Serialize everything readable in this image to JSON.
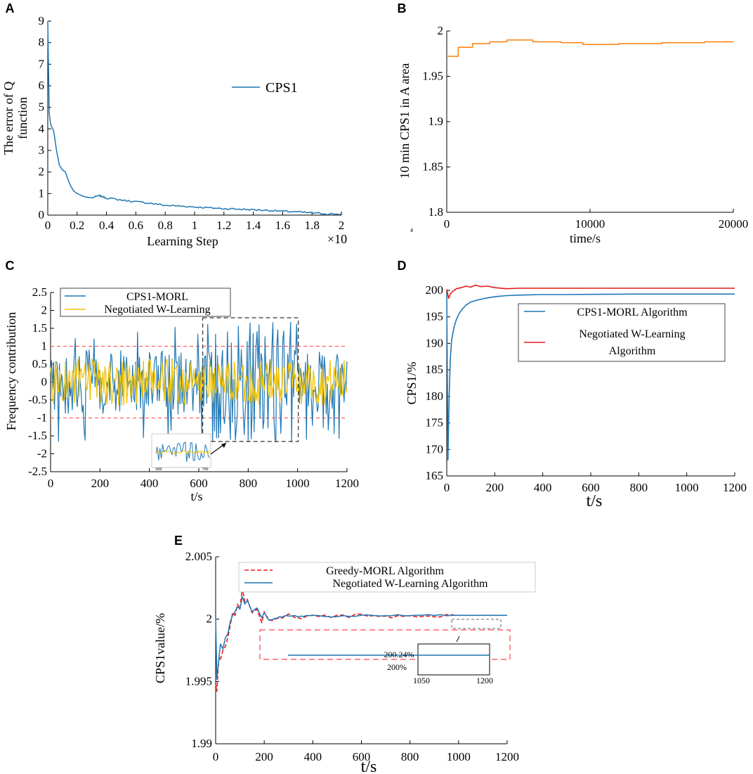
{
  "colors": {
    "blue": "#1f77b4",
    "orange": "#ff7f0e",
    "yellow": "#f2c200",
    "red": "#e31a1c",
    "dashed_red": "#ff4444"
  },
  "chart_data": [
    {
      "id": "A",
      "type": "line",
      "panel_letter": "A",
      "ylabel_line1": "The error of Q",
      "ylabel_line2": "function",
      "xlabel": "Learning Step",
      "x_multiplier": "×10",
      "xlim": [
        0,
        2
      ],
      "ylim": [
        0,
        9
      ],
      "xticks": [
        0,
        0.2,
        0.4,
        0.6,
        0.8,
        1,
        1.2,
        1.4,
        1.6,
        1.8,
        2
      ],
      "xtick_labels": [
        "0",
        "0.2",
        "0.4",
        "0.6",
        "0.8",
        "1",
        "1.2",
        "1.4",
        "1.6",
        "1.8",
        "2"
      ],
      "yticks": [
        0,
        1,
        2,
        3,
        4,
        5,
        6,
        7,
        8,
        9
      ],
      "ytick_labels": [
        "0",
        "1",
        "2",
        "3",
        "4",
        "5",
        "6",
        "7",
        "8",
        "9"
      ],
      "legend": [
        "CPS1"
      ],
      "series": [
        {
          "name": "CPS1",
          "x": [
            0,
            0.01,
            0.02,
            0.04,
            0.06,
            0.08,
            0.1,
            0.12,
            0.14,
            0.16,
            0.18,
            0.2,
            0.25,
            0.3,
            0.35,
            0.4,
            0.5,
            0.6,
            0.7,
            0.8,
            0.9,
            1.0,
            1.1,
            1.2,
            1.3,
            1.4,
            1.5,
            1.6,
            1.7,
            1.8,
            1.9,
            2.0
          ],
          "y": [
            9,
            4.7,
            4.2,
            3.9,
            3.0,
            2.3,
            2.1,
            2.0,
            1.6,
            1.3,
            1.1,
            1.0,
            0.85,
            0.8,
            0.9,
            0.8,
            0.7,
            0.62,
            0.55,
            0.45,
            0.42,
            0.38,
            0.34,
            0.3,
            0.28,
            0.25,
            0.22,
            0.18,
            0.15,
            0.1,
            0.06,
            0.05
          ]
        }
      ]
    },
    {
      "id": "B",
      "type": "line",
      "panel_letter": "B",
      "ylabel": "10 min CPS1 in A area",
      "xlabel": "time/s",
      "xlim": [
        0,
        20000
      ],
      "ylim": [
        1.8,
        2.0
      ],
      "xticks": [
        0,
        10000,
        20000
      ],
      "xtick_labels": [
        "0",
        "10000",
        "20000"
      ],
      "yticks": [
        1.8,
        1.85,
        1.9,
        1.95,
        2.0
      ],
      "ytick_labels": [
        "1.8",
        "1.85",
        "1.9",
        "1.95",
        "2"
      ],
      "stray_mark": "4",
      "series": [
        {
          "name": "CPS1",
          "x": [
            0,
            800,
            800,
            1800,
            1800,
            3000,
            3000,
            4200,
            4200,
            6000,
            6000,
            8000,
            8000,
            9500,
            9500,
            12000,
            12000,
            15000,
            15000,
            18000,
            18000,
            20000
          ],
          "y": [
            1.972,
            1.972,
            1.982,
            1.982,
            1.986,
            1.986,
            1.988,
            1.988,
            1.99,
            1.99,
            1.988,
            1.988,
            1.987,
            1.987,
            1.985,
            1.985,
            1.986,
            1.986,
            1.987,
            1.987,
            1.988,
            1.988
          ]
        }
      ]
    },
    {
      "id": "C",
      "type": "line",
      "panel_letter": "C",
      "ylabel": "Frequency contribution",
      "xlabel": "t/s",
      "xlim": [
        0,
        1200
      ],
      "ylim": [
        -2.5,
        2.5
      ],
      "xticks": [
        0,
        200,
        400,
        600,
        800,
        1000,
        1200
      ],
      "xtick_labels": [
        "0",
        "200",
        "400",
        "600",
        "800",
        "1000",
        "1200"
      ],
      "yticks": [
        -2.5,
        -2,
        -1.5,
        -1,
        -0.5,
        0,
        0.5,
        1,
        1.5,
        2,
        2.5
      ],
      "ytick_labels": [
        "-2.5",
        "-2",
        "-1.5",
        "-1",
        "-0.5",
        "0",
        "0.5",
        "1",
        "1.5",
        "2",
        "2.5"
      ],
      "thresholds": [
        1,
        -1
      ],
      "legend": [
        "CPS1-MORL",
        "Negotiated W-Learning"
      ],
      "zoom_window_x": [
        650,
        980
      ],
      "inset_tick_labels": [
        "600",
        "700"
      ],
      "series": [
        {
          "name": "CPS1-MORL"
        },
        {
          "name": "Negotiated W-Learning"
        }
      ]
    },
    {
      "id": "D",
      "type": "line",
      "panel_letter": "D",
      "ylabel": "CPS1/%",
      "xlabel": "t/s",
      "xlim": [
        0,
        1200
      ],
      "ylim": [
        165,
        200
      ],
      "xticks": [
        0,
        200,
        400,
        600,
        800,
        1000,
        1200
      ],
      "xtick_labels": [
        "0",
        "200",
        "400",
        "600",
        "800",
        "1000",
        "1200"
      ],
      "yticks": [
        165,
        170,
        175,
        180,
        185,
        190,
        195,
        200
      ],
      "ytick_labels": [
        "165",
        "170",
        "175",
        "180",
        "185",
        "190",
        "195",
        "200"
      ],
      "legend": [
        "CPS1-MORL Algorithm",
        "Negotiated W-Learning",
        "Algorithm"
      ],
      "series": [
        {
          "name": "CPS1-MORL Algorithm",
          "x": [
            0,
            5,
            10,
            15,
            20,
            30,
            40,
            50,
            60,
            80,
            100,
            130,
            160,
            200,
            250,
            300,
            400,
            500,
            600,
            800,
            1000,
            1200
          ],
          "y": [
            199.5,
            168,
            180,
            187,
            190.5,
            193,
            194.5,
            195.5,
            196.2,
            197.2,
            197.8,
            198.2,
            198.5,
            198.8,
            199.0,
            199.1,
            199.2,
            199.2,
            199.25,
            199.3,
            199.3,
            199.3
          ]
        },
        {
          "name": "Negotiated W-Learning Algorithm",
          "x": [
            0,
            8,
            15,
            25,
            40,
            60,
            80,
            100,
            120,
            140,
            170,
            200,
            250,
            300,
            400,
            500,
            600,
            800,
            1000,
            1200
          ],
          "y": [
            200.2,
            198.5,
            199.3,
            199.8,
            200.3,
            200.5,
            200.8,
            200.6,
            201.0,
            200.7,
            200.8,
            200.5,
            200.3,
            200.4,
            200.4,
            200.4,
            200.4,
            200.4,
            200.4,
            200.4
          ]
        }
      ]
    },
    {
      "id": "E",
      "type": "line",
      "panel_letter": "E",
      "ylabel": "CPS1value/%",
      "xlabel": "t/s",
      "xlim": [
        0,
        1200
      ],
      "ylim": [
        1.99,
        2.005
      ],
      "xticks": [
        0,
        200,
        400,
        600,
        800,
        1000,
        1200
      ],
      "xtick_labels": [
        "0",
        "200",
        "400",
        "600",
        "800",
        "1000",
        "1200"
      ],
      "yticks": [
        1.99,
        1.995,
        2.0,
        2.005
      ],
      "ytick_labels": [
        "1.99",
        "1.995",
        "2",
        "2.005"
      ],
      "legend": [
        "Greedy-MORL Algorithm",
        "Negotiated W-Learning Algorithm"
      ],
      "inset_labels": [
        "200.24%",
        "200%"
      ],
      "inset_xtick_labels": [
        "1050",
        "1200"
      ],
      "series": [
        {
          "name": "Greedy-MORL Algorithm",
          "x": [
            0,
            5,
            10,
            15,
            20,
            30,
            40,
            50,
            60,
            70,
            80,
            90,
            100,
            110,
            120,
            130,
            150,
            170,
            190,
            200,
            220,
            250,
            300,
            350,
            400,
            500,
            600,
            700,
            800,
            900,
            1000,
            1200
          ],
          "y": [
            1.9948,
            1.9942,
            1.996,
            1.997,
            1.9968,
            1.9975,
            1.9978,
            1.9985,
            1.9995,
            2.0005,
            2.0003,
            2.0012,
            2.0008,
            2.0025,
            2.0014,
            2.0016,
            2.0005,
            2.0008,
            1.9997,
            2.0006,
            1.9999,
            2.0,
            2.0003,
            2.0001,
            2.0003,
            2.0002,
            2.0003,
            2.0002,
            2.0003,
            2.0002,
            2.0003,
            2.0003
          ]
        },
        {
          "name": "Negotiated W-Learning Algorithm",
          "x": [
            0,
            5,
            10,
            15,
            20,
            30,
            40,
            50,
            60,
            70,
            80,
            90,
            100,
            110,
            120,
            130,
            150,
            170,
            190,
            200,
            220,
            250,
            300,
            350,
            400,
            500,
            600,
            700,
            800,
            900,
            1000,
            1200
          ],
          "y": [
            2.0002,
            1.9952,
            1.9962,
            1.9972,
            1.998,
            1.9976,
            1.9985,
            1.9988,
            1.9998,
            2.0003,
            2.0006,
            2.001,
            2.0008,
            2.0018,
            2.0012,
            2.0015,
            2.0006,
            2.0009,
            2.0001,
            2.0005,
            1.9999,
            2.0001,
            2.0003,
            2.0002,
            2.0003,
            2.0002,
            2.0003,
            2.0003,
            2.0003,
            2.0003,
            2.0003,
            2.0003
          ]
        }
      ]
    }
  ]
}
